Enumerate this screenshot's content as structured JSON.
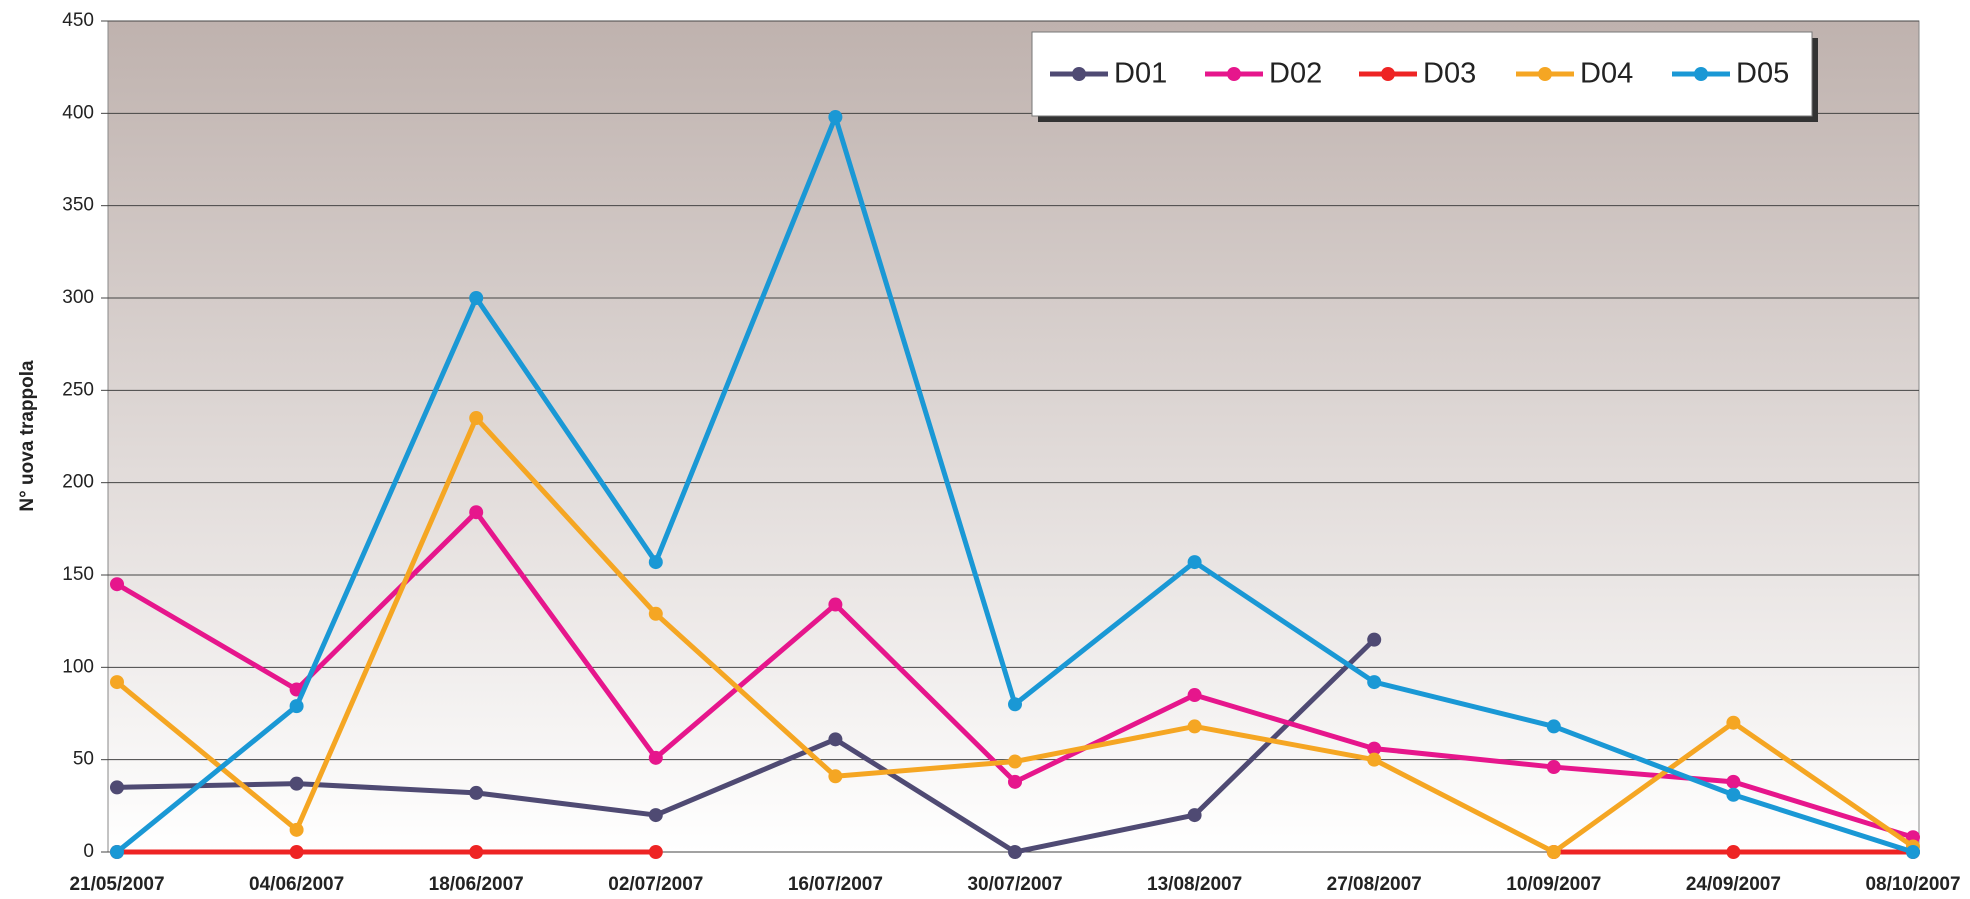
{
  "chart_data": {
    "type": "line",
    "y_label": "N° uova trappola",
    "categories": [
      "21/05/2007",
      "04/06/2007",
      "18/06/2007",
      "02/07/2007",
      "16/07/2007",
      "30/07/2007",
      "13/08/2007",
      "27/08/2007",
      "10/09/2007",
      "24/09/2007",
      "08/10/2007"
    ],
    "series": [
      {
        "name": "D01",
        "color": "#4f4a73",
        "values": [
          35,
          37,
          32,
          20,
          61,
          0,
          20,
          115,
          null,
          null,
          null
        ]
      },
      {
        "name": "D02",
        "color": "#e6168c",
        "values": [
          145,
          88,
          184,
          51,
          134,
          38,
          85,
          56,
          46,
          38,
          8
        ]
      },
      {
        "name": "D03",
        "color": "#ee2424",
        "values": [
          0,
          0,
          0,
          0,
          null,
          null,
          null,
          null,
          0,
          0,
          0
        ]
      },
      {
        "name": "D04",
        "color": "#f5a623",
        "values": [
          92,
          12,
          235,
          129,
          41,
          49,
          68,
          50,
          0,
          70,
          3
        ]
      },
      {
        "name": "D05",
        "color": "#1a98d5",
        "values": [
          0,
          79,
          300,
          157,
          398,
          80,
          157,
          92,
          68,
          31,
          0
        ]
      }
    ],
    "ylim": [
      0,
      450
    ],
    "yticks": [
      0,
      50,
      100,
      150,
      200,
      250,
      300,
      350,
      400,
      450
    ],
    "grid": true,
    "legend": "top-right"
  }
}
